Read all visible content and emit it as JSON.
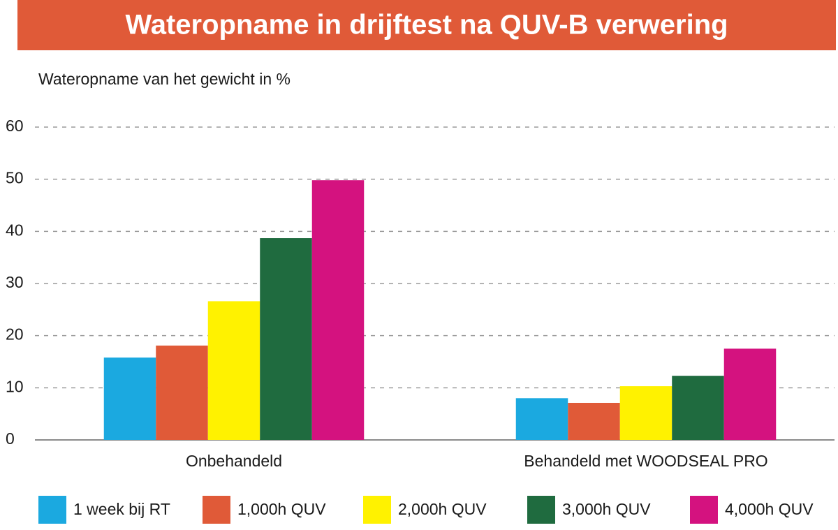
{
  "chart_data": {
    "type": "bar",
    "title": "Wateropname in drijftest na QUV-B verwering",
    "y_label": "Wateropname van het gewicht in %",
    "categories": [
      "Onbehandeld",
      "Behandeld met WOODSEAL PRO"
    ],
    "series": [
      {
        "name": "1 week bij RT",
        "color": "#1ba9e0",
        "values": [
          15.8,
          8
        ]
      },
      {
        "name": "1,000h QUV",
        "color": "#e05a38",
        "values": [
          18.1,
          7.1
        ]
      },
      {
        "name": "2,000h QUV",
        "color": "#fff200",
        "values": [
          26.6,
          10.3
        ]
      },
      {
        "name": "3,000h QUV",
        "color": "#1f6b3f",
        "values": [
          38.7,
          12.3
        ]
      },
      {
        "name": "4,000h QUV",
        "color": "#d4127f",
        "values": [
          49.8,
          17.5
        ]
      }
    ],
    "ylim": [
      0,
      60
    ],
    "yticks": [
      0,
      10,
      20,
      30,
      40,
      50,
      60
    ],
    "grid": true,
    "legend": "bottom"
  }
}
